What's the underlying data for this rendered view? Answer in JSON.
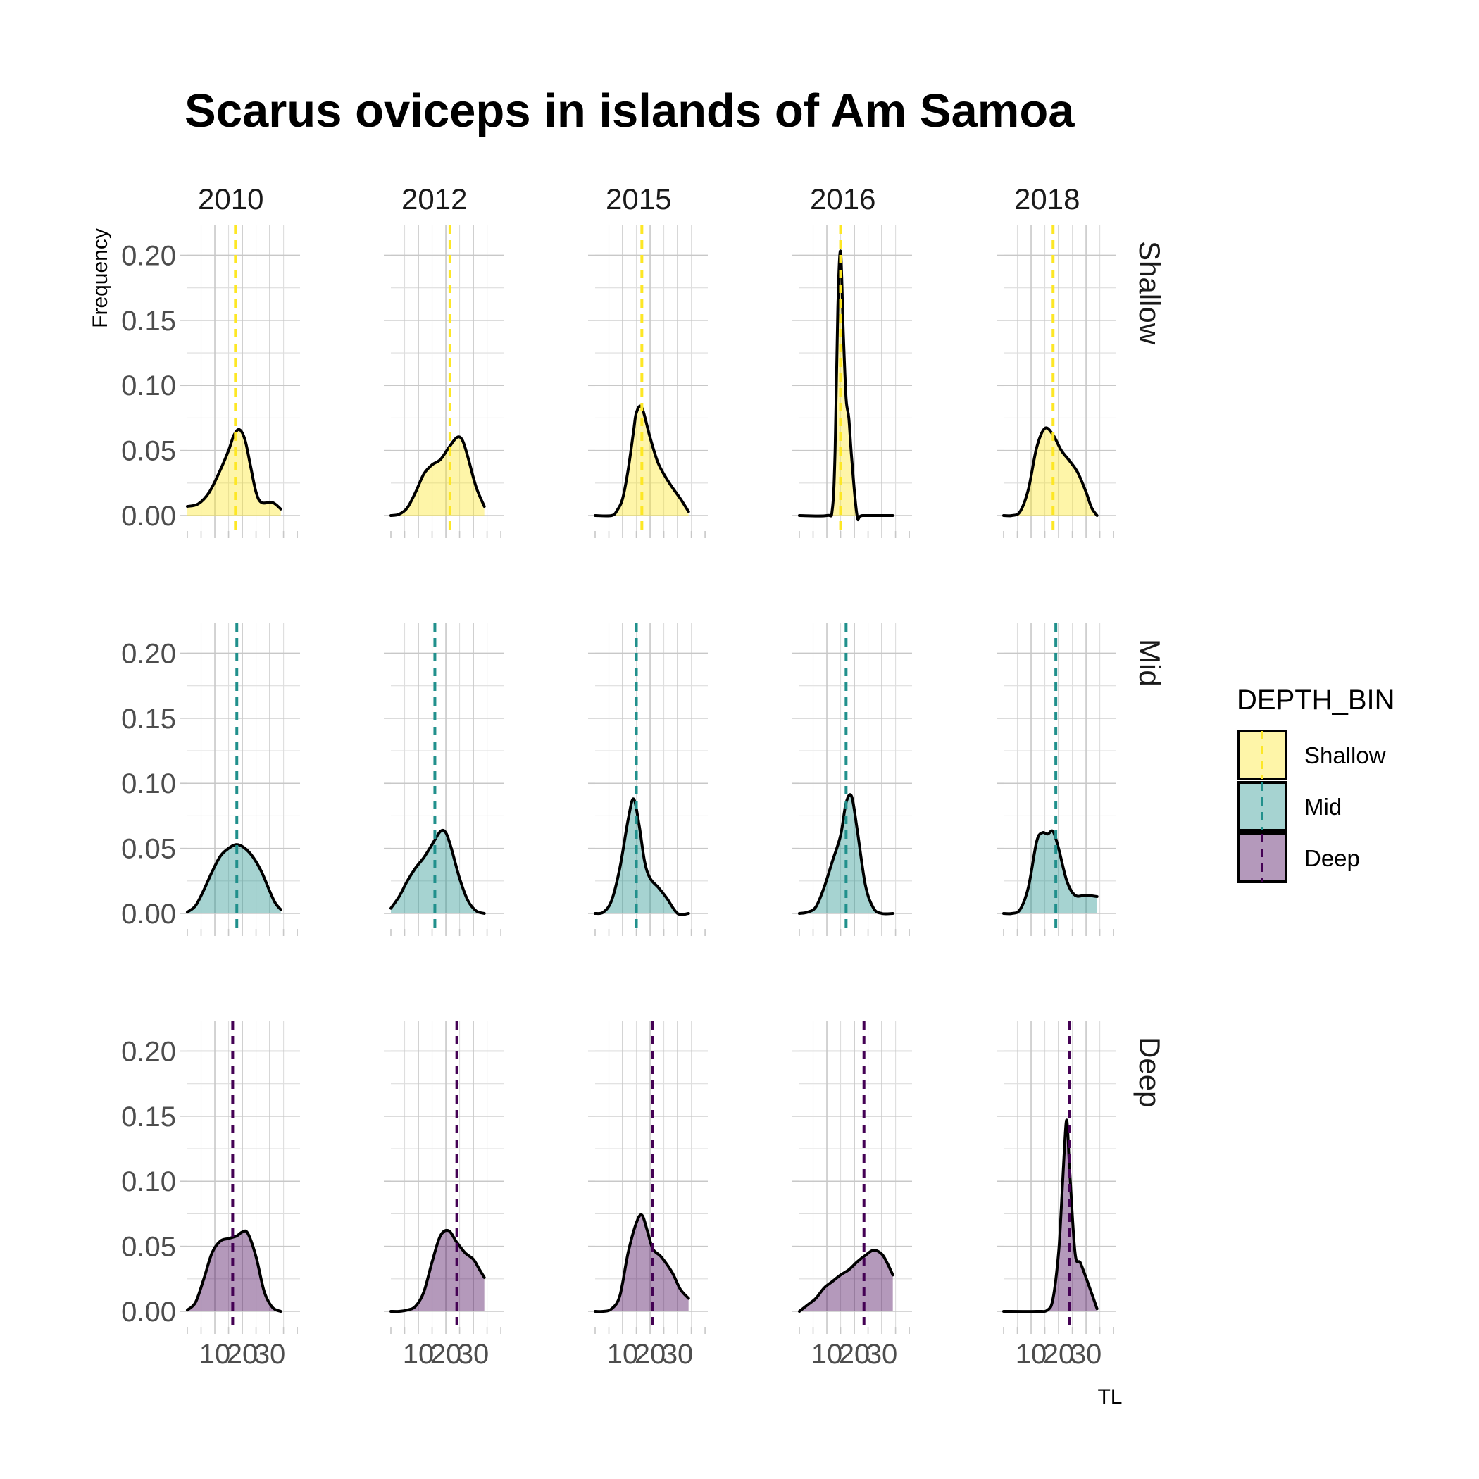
{
  "chart_data": {
    "type": "area",
    "title": "Scarus oviceps in islands of Am Samoa",
    "xlabel": "TL",
    "ylabel": "Frequency",
    "facet_columns": [
      "2010",
      "2012",
      "2015",
      "2016",
      "2018"
    ],
    "facet_rows": [
      "Shallow",
      "Mid",
      "Deep"
    ],
    "xlim": [
      0,
      41
    ],
    "ylim": [
      0,
      0.21
    ],
    "x_ticks": [
      10,
      20,
      30
    ],
    "y_ticks": [
      0.0,
      0.05,
      0.1,
      0.15,
      0.2
    ],
    "y_tick_labels": [
      "0.00",
      "0.05",
      "0.10",
      "0.15",
      "0.20"
    ],
    "grid": true,
    "legend": {
      "title": "DEPTH_BIN",
      "position": "right",
      "items": [
        {
          "label": "Shallow",
          "color": "#fde725"
        },
        {
          "label": "Mid",
          "color": "#21908c"
        },
        {
          "label": "Deep",
          "color": "#440154"
        }
      ]
    },
    "panels": [
      {
        "year": "2010",
        "depth": "Shallow",
        "mean": 17.5,
        "x": [
          0,
          4,
          8,
          12,
          15,
          17,
          19,
          21,
          23,
          25,
          27,
          31,
          34
        ],
        "y": [
          0.007,
          0.009,
          0.018,
          0.035,
          0.05,
          0.062,
          0.066,
          0.058,
          0.038,
          0.018,
          0.01,
          0.01,
          0.005
        ]
      },
      {
        "year": "2012",
        "depth": "Shallow",
        "mean": 21.5,
        "x": [
          0,
          3,
          6,
          9,
          12,
          15,
          18,
          21,
          24,
          26,
          28,
          31,
          34
        ],
        "y": [
          0.0,
          0.001,
          0.006,
          0.018,
          0.032,
          0.039,
          0.043,
          0.052,
          0.06,
          0.058,
          0.045,
          0.022,
          0.007
        ]
      },
      {
        "year": "2015",
        "depth": "Shallow",
        "mean": 17.0,
        "x": [
          0,
          6,
          8,
          10,
          12,
          14,
          15,
          17,
          20,
          23,
          27,
          31,
          34
        ],
        "y": [
          0.0,
          0.0,
          0.004,
          0.013,
          0.035,
          0.065,
          0.079,
          0.083,
          0.06,
          0.04,
          0.025,
          0.013,
          0.003
        ]
      },
      {
        "year": "2016",
        "depth": "Shallow",
        "mean": 15.0,
        "x": [
          0,
          10,
          12,
          13,
          14,
          15,
          16,
          17,
          18,
          19,
          21,
          23,
          34
        ],
        "y": [
          0.0,
          0.0,
          0.005,
          0.05,
          0.16,
          0.203,
          0.14,
          0.09,
          0.075,
          0.045,
          0.0,
          0.0,
          0.0
        ]
      },
      {
        "year": "2018",
        "depth": "Shallow",
        "mean": 18.0,
        "x": [
          0,
          3,
          6,
          9,
          12,
          15,
          18,
          21,
          24,
          27,
          30,
          32,
          34
        ],
        "y": [
          0.0,
          0.0,
          0.003,
          0.02,
          0.052,
          0.067,
          0.062,
          0.05,
          0.042,
          0.033,
          0.018,
          0.006,
          0.0
        ]
      },
      {
        "year": "2010",
        "depth": "Mid",
        "mean": 18.0,
        "x": [
          0,
          3,
          6,
          9,
          12,
          15,
          18,
          21,
          24,
          27,
          30,
          32,
          34
        ],
        "y": [
          0.001,
          0.006,
          0.018,
          0.032,
          0.044,
          0.05,
          0.053,
          0.05,
          0.043,
          0.032,
          0.017,
          0.008,
          0.003
        ]
      },
      {
        "year": "2012",
        "depth": "Mid",
        "mean": 16.0,
        "x": [
          0,
          3,
          6,
          9,
          12,
          15,
          18,
          20,
          22,
          25,
          28,
          31,
          34
        ],
        "y": [
          0.004,
          0.013,
          0.025,
          0.035,
          0.043,
          0.053,
          0.063,
          0.062,
          0.05,
          0.027,
          0.01,
          0.002,
          0.0
        ]
      },
      {
        "year": "2015",
        "depth": "Mid",
        "mean": 15.0,
        "x": [
          0,
          3,
          6,
          9,
          12,
          14,
          16,
          18,
          20,
          23,
          26,
          30,
          34
        ],
        "y": [
          0.0,
          0.001,
          0.01,
          0.035,
          0.072,
          0.088,
          0.068,
          0.04,
          0.027,
          0.02,
          0.012,
          0.0,
          0.0
        ]
      },
      {
        "year": "2016",
        "depth": "Mid",
        "mean": 17.0,
        "x": [
          0,
          3,
          6,
          9,
          12,
          15,
          17,
          19,
          21,
          24,
          27,
          30,
          34
        ],
        "y": [
          0.0,
          0.001,
          0.005,
          0.02,
          0.04,
          0.06,
          0.085,
          0.09,
          0.065,
          0.022,
          0.004,
          0.0,
          0.0
        ]
      },
      {
        "year": "2018",
        "depth": "Mid",
        "mean": 19.0,
        "x": [
          0,
          3,
          6,
          9,
          12,
          14,
          16,
          18,
          20,
          23,
          26,
          30,
          34
        ],
        "y": [
          0.0,
          0.0,
          0.003,
          0.02,
          0.055,
          0.062,
          0.061,
          0.063,
          0.05,
          0.025,
          0.014,
          0.014,
          0.013
        ]
      },
      {
        "year": "2010",
        "depth": "Deep",
        "mean": 16.5,
        "x": [
          0,
          3,
          6,
          9,
          12,
          15,
          18,
          20,
          22,
          25,
          28,
          31,
          34
        ],
        "y": [
          0.001,
          0.007,
          0.025,
          0.045,
          0.054,
          0.056,
          0.058,
          0.061,
          0.06,
          0.042,
          0.015,
          0.003,
          0.0
        ]
      },
      {
        "year": "2012",
        "depth": "Deep",
        "mean": 24.0,
        "x": [
          0,
          3,
          6,
          9,
          12,
          15,
          18,
          21,
          24,
          27,
          30,
          32,
          34
        ],
        "y": [
          0.0,
          0.0,
          0.001,
          0.004,
          0.015,
          0.038,
          0.058,
          0.062,
          0.053,
          0.045,
          0.04,
          0.033,
          0.026
        ]
      },
      {
        "year": "2015",
        "depth": "Deep",
        "mean": 21.0,
        "x": [
          0,
          3,
          6,
          9,
          12,
          15,
          17,
          19,
          21,
          24,
          28,
          31,
          34
        ],
        "y": [
          0.0,
          0.0,
          0.002,
          0.012,
          0.045,
          0.068,
          0.074,
          0.062,
          0.048,
          0.042,
          0.03,
          0.017,
          0.01
        ]
      },
      {
        "year": "2016",
        "depth": "Deep",
        "mean": 23.5,
        "x": [
          0,
          3,
          6,
          9,
          12,
          15,
          18,
          21,
          24,
          27,
          30,
          32,
          34
        ],
        "y": [
          0.0,
          0.005,
          0.01,
          0.018,
          0.023,
          0.028,
          0.032,
          0.038,
          0.043,
          0.047,
          0.044,
          0.037,
          0.028
        ]
      },
      {
        "year": "2018",
        "depth": "Deep",
        "mean": 24.0,
        "x": [
          0,
          12,
          16,
          18,
          20,
          21,
          22,
          23,
          24,
          26,
          28,
          31,
          34
        ],
        "y": [
          0.0,
          0.0,
          0.001,
          0.01,
          0.045,
          0.08,
          0.12,
          0.147,
          0.11,
          0.045,
          0.037,
          0.02,
          0.002
        ]
      }
    ]
  }
}
